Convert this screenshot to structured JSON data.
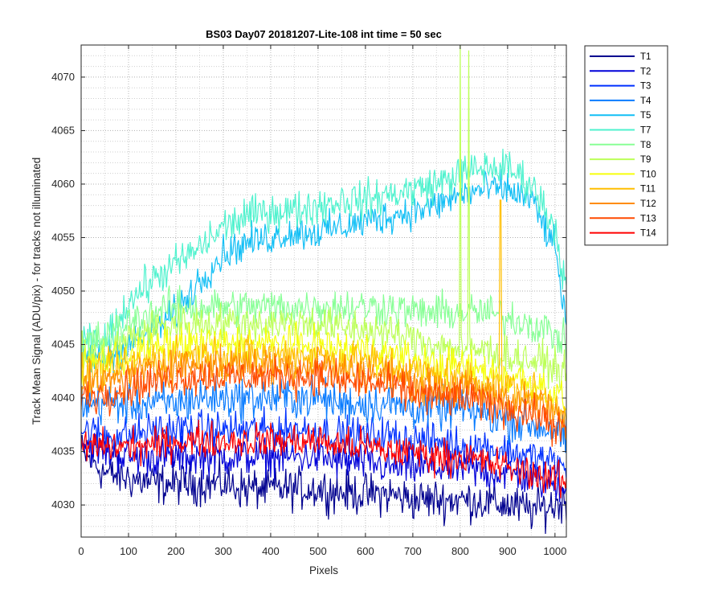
{
  "chart_data": {
    "type": "line",
    "title": "BS03 Day07 20181207-Lite-108 int time = 50 sec",
    "xlabel": "Pixels",
    "ylabel": "Track Mean Signal (ADU/pix) - for tracks not illuminated",
    "xlim": [
      0,
      1024
    ],
    "ylim": [
      4027,
      4073
    ],
    "x_ticks": [
      0,
      100,
      200,
      300,
      400,
      500,
      600,
      700,
      800,
      900,
      1000
    ],
    "y_ticks": [
      4030,
      4035,
      4040,
      4045,
      4050,
      4055,
      4060,
      4065,
      4070
    ],
    "grid": "on (major and minor, dotted)",
    "legend_position": "outside right, top",
    "x": [
      0,
      50,
      100,
      150,
      200,
      250,
      300,
      350,
      400,
      450,
      500,
      550,
      600,
      650,
      700,
      750,
      800,
      850,
      900,
      950,
      1000,
      1024
    ],
    "series": [
      {
        "name": "T1",
        "color": "#00008f",
        "noise": 1.2,
        "values": [
          4035,
          4033,
          4032.5,
          4032,
          4032,
          4032,
          4032,
          4031.5,
          4031.5,
          4031.5,
          4031.5,
          4031.2,
          4031,
          4031,
          4030.5,
          4030.5,
          4030.5,
          4030.3,
          4030,
          4029.5,
          4030,
          4030.5
        ]
      },
      {
        "name": "T2",
        "color": "#0000d9",
        "noise": 1.1,
        "values": [
          4036,
          4035,
          4034.5,
          4034.5,
          4034.5,
          4034.5,
          4034.5,
          4034.5,
          4034.5,
          4034.5,
          4034.5,
          4034,
          4034,
          4033.5,
          4033.5,
          4033.5,
          4033.5,
          4033,
          4033,
          4032.5,
          4032,
          4032
        ]
      },
      {
        "name": "T3",
        "color": "#0030ff",
        "noise": 1.1,
        "values": [
          4037,
          4036.5,
          4036.5,
          4037,
          4037,
          4037,
          4037,
          4037,
          4037,
          4037,
          4037,
          4036.5,
          4036.5,
          4036.5,
          4036,
          4036,
          4035.5,
          4035.5,
          4035,
          4034.5,
          4034,
          4033
        ]
      },
      {
        "name": "T4",
        "color": "#0a7cff",
        "noise": 1.2,
        "values": [
          4039.5,
          4039.5,
          4039.5,
          4039.5,
          4039.5,
          4040,
          4040,
          4040,
          4040,
          4040,
          4040,
          4039.5,
          4039.5,
          4039.5,
          4039,
          4039,
          4039,
          4038.5,
          4038,
          4037.5,
          4037,
          4036
        ]
      },
      {
        "name": "T5",
        "color": "#13bff5",
        "noise": 1.0,
        "values": [
          4044,
          4043.5,
          4045,
          4046,
          4048,
          4051,
          4053.5,
          4054.5,
          4055,
          4055.5,
          4055.5,
          4056,
          4056.5,
          4057,
          4057.5,
          4058,
          4059,
          4059.5,
          4059.5,
          4058.5,
          4054,
          4047
        ]
      },
      {
        "name": "T7",
        "color": "#4ff2ce",
        "noise": 1.1,
        "values": [
          4045,
          4045,
          4049,
          4051,
          4052.5,
          4054,
          4056,
          4057,
          4057.5,
          4057.5,
          4058,
          4058.5,
          4058.5,
          4059,
          4059.5,
          4060,
          4061,
          4061.5,
          4061.5,
          4060,
          4056,
          4050
        ]
      },
      {
        "name": "T8",
        "color": "#88ff96",
        "noise": 1.1,
        "values": [
          4045,
          4045.5,
          4047,
          4048,
          4048.5,
          4048.5,
          4048.5,
          4048.5,
          4048.5,
          4048.5,
          4048.5,
          4048.5,
          4048.5,
          4048.5,
          4048,
          4048,
          4048,
          4048,
          4047.5,
          4047,
          4046,
          4045
        ]
      },
      {
        "name": "T9",
        "color": "#bcff58",
        "noise": 1.1,
        "values": [
          4044,
          4044,
          4045.5,
          4046.5,
          4047,
          4047,
          4047,
          4047,
          4047,
          4047,
          4047,
          4046.5,
          4046.5,
          4046,
          4045.5,
          4045,
          4044.5,
          4044.5,
          4044,
          4043.5,
          4043,
          4042
        ]
      },
      {
        "name": "T10",
        "color": "#f6ff0c",
        "noise": 1.1,
        "values": [
          4043,
          4043.5,
          4044,
          4044.5,
          4045,
          4045,
          4045,
          4045,
          4045,
          4045,
          4045,
          4044.5,
          4044.5,
          4044,
          4043.5,
          4043,
          4043,
          4042.5,
          4042,
          4041.5,
          4040.5,
          4039.5
        ]
      },
      {
        "name": "T11",
        "color": "#ffbe00",
        "noise": 1.1,
        "values": [
          4042,
          4042.5,
          4043,
          4043.5,
          4044,
          4044,
          4044,
          4044,
          4044,
          4044,
          4044,
          4043.5,
          4043.5,
          4043,
          4042.5,
          4042,
          4042,
          4041.5,
          4041,
          4040.5,
          4039.5,
          4038.5
        ]
      },
      {
        "name": "T12",
        "color": "#ff8c00",
        "noise": 1.1,
        "values": [
          4041,
          4041.5,
          4042,
          4042.5,
          4043,
          4043,
          4043,
          4043,
          4043,
          4043,
          4043,
          4042.5,
          4042.5,
          4042,
          4041.5,
          4041,
          4041,
          4040.5,
          4040,
          4039.5,
          4038.5,
          4037.5
        ]
      },
      {
        "name": "T13",
        "color": "#ff4a00",
        "noise": 1.1,
        "values": [
          4040,
          4040.5,
          4041,
          4041.5,
          4042,
          4042,
          4042,
          4042,
          4042,
          4042,
          4042,
          4041.5,
          4041.5,
          4041,
          4040.5,
          4040,
          4040,
          4039.5,
          4039,
          4038.5,
          4037.5,
          4036.5
        ]
      },
      {
        "name": "T14",
        "color": "#ff0000",
        "noise": 1.0,
        "values": [
          4035.5,
          4035.5,
          4035.5,
          4035.5,
          4036,
          4036,
          4036,
          4036,
          4036,
          4036,
          4036,
          4035.5,
          4035.5,
          4035,
          4035,
          4034.5,
          4034.5,
          4034,
          4033.5,
          4033,
          4032.5,
          4032
        ]
      }
    ],
    "annotations": [
      {
        "series": "T9",
        "x": 800,
        "y": 4073,
        "kind": "spike"
      },
      {
        "series": "T9",
        "x": 818,
        "y": 4072.5,
        "kind": "spike"
      },
      {
        "series": "T11",
        "x": 885,
        "y": 4058.5,
        "kind": "spike"
      }
    ]
  }
}
